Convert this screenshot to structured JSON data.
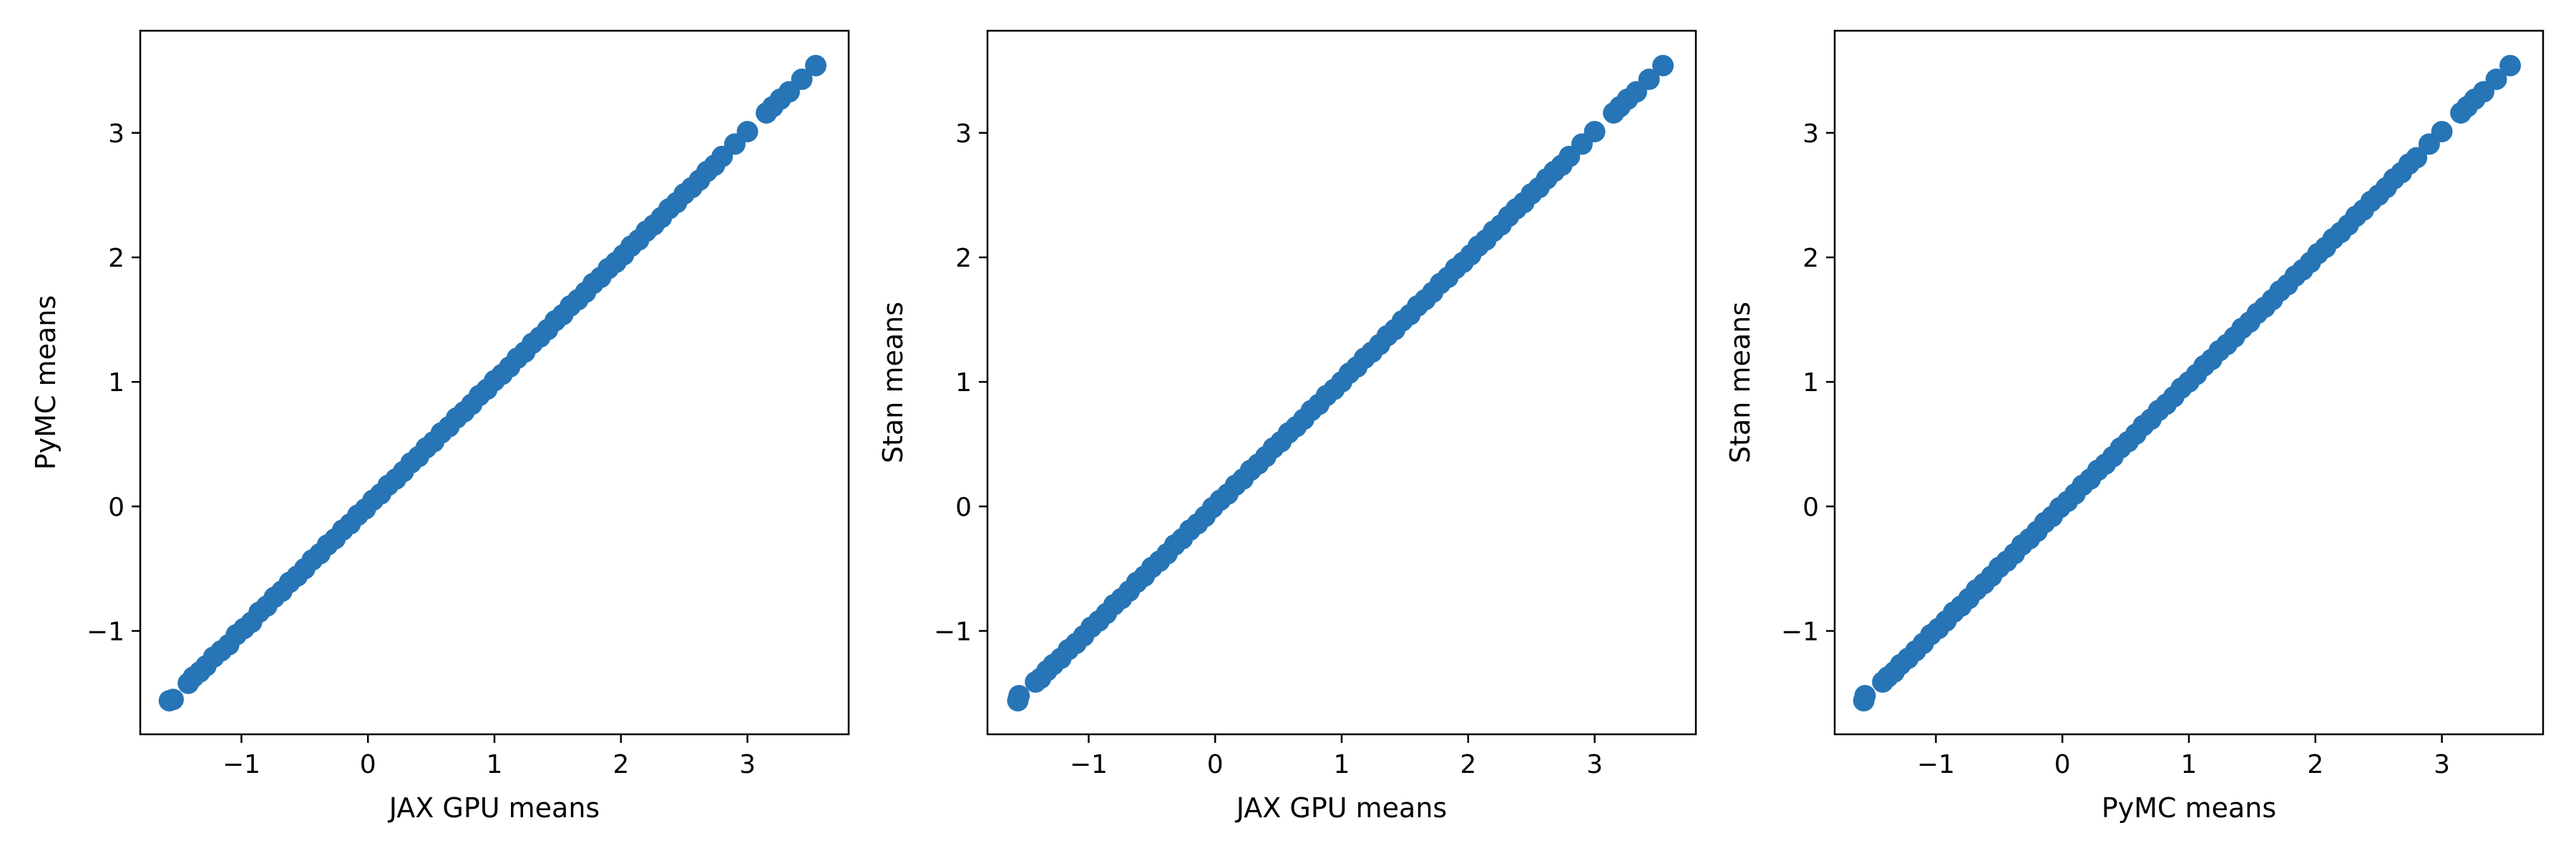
{
  "colors": {
    "marker": "#2775b6",
    "axes": "#000000",
    "background": "#ffffff"
  },
  "chart_data": [
    {
      "type": "scatter",
      "title": "",
      "xlabel": "JAX GPU means",
      "ylabel": "PyMC means",
      "xlim": [
        -1.8,
        3.8
      ],
      "ylim": [
        -1.83,
        3.82
      ],
      "xticks": [
        -1,
        0,
        1,
        2,
        3
      ],
      "yticks": [
        -1,
        0,
        1,
        2,
        3
      ],
      "xtick_labels": [
        "−1",
        "0",
        "1",
        "2",
        "3"
      ],
      "ytick_labels": [
        "−1",
        "0",
        "1",
        "2",
        "3"
      ],
      "grid": false,
      "legend": "none",
      "series": [
        {
          "x": [
            -1.57,
            -1.54,
            -1.42,
            -1.38,
            -1.33,
            -1.28,
            -1.22,
            -1.16,
            -1.1,
            -1.04,
            -0.98,
            -0.92,
            -0.86,
            -0.8,
            -0.74,
            -0.68,
            -0.62,
            -0.56,
            -0.5,
            -0.44,
            -0.38,
            -0.32,
            -0.26,
            -0.2,
            -0.14,
            -0.08,
            -0.02,
            0.04,
            0.1,
            0.16,
            0.22,
            0.28,
            0.34,
            0.4,
            0.46,
            0.52,
            0.58,
            0.64,
            0.7,
            0.76,
            0.82,
            0.88,
            0.94,
            1.0,
            1.06,
            1.12,
            1.18,
            1.24,
            1.3,
            1.36,
            1.42,
            1.48,
            1.54,
            1.6,
            1.66,
            1.72,
            1.78,
            1.84,
            1.9,
            1.96,
            2.02,
            2.08,
            2.14,
            2.2,
            2.26,
            2.32,
            2.38,
            2.44,
            2.5,
            2.56,
            2.62,
            2.68,
            2.74,
            2.8,
            2.9,
            3.0,
            3.15,
            3.2,
            3.26,
            3.33,
            3.43,
            3.54
          ],
          "y": [
            -1.56,
            -1.55,
            -1.42,
            -1.37,
            -1.33,
            -1.28,
            -1.21,
            -1.16,
            -1.11,
            -1.03,
            -0.98,
            -0.93,
            -0.85,
            -0.8,
            -0.73,
            -0.68,
            -0.61,
            -0.56,
            -0.5,
            -0.43,
            -0.38,
            -0.31,
            -0.26,
            -0.19,
            -0.14,
            -0.07,
            -0.02,
            0.05,
            0.1,
            0.17,
            0.22,
            0.28,
            0.35,
            0.4,
            0.47,
            0.52,
            0.59,
            0.64,
            0.71,
            0.76,
            0.82,
            0.89,
            0.94,
            1.01,
            1.06,
            1.12,
            1.19,
            1.24,
            1.31,
            1.36,
            1.42,
            1.49,
            1.54,
            1.61,
            1.66,
            1.72,
            1.79,
            1.84,
            1.91,
            1.96,
            2.02,
            2.09,
            2.14,
            2.21,
            2.26,
            2.32,
            2.39,
            2.44,
            2.51,
            2.56,
            2.62,
            2.69,
            2.74,
            2.81,
            2.91,
            3.01,
            3.16,
            3.21,
            3.27,
            3.33,
            3.43,
            3.54
          ]
        }
      ]
    },
    {
      "type": "scatter",
      "title": "",
      "xlabel": "JAX GPU means",
      "ylabel": "Stan means",
      "xlim": [
        -1.8,
        3.8
      ],
      "ylim": [
        -1.83,
        3.82
      ],
      "xticks": [
        -1,
        0,
        1,
        2,
        3
      ],
      "yticks": [
        -1,
        0,
        1,
        2,
        3
      ],
      "xtick_labels": [
        "−1",
        "0",
        "1",
        "2",
        "3"
      ],
      "ytick_labels": [
        "−1",
        "0",
        "1",
        "2",
        "3"
      ],
      "grid": false,
      "legend": "none",
      "series": [
        {
          "x": [
            -1.56,
            -1.55,
            -1.42,
            -1.38,
            -1.33,
            -1.28,
            -1.22,
            -1.16,
            -1.1,
            -1.04,
            -0.98,
            -0.92,
            -0.86,
            -0.8,
            -0.74,
            -0.68,
            -0.62,
            -0.56,
            -0.5,
            -0.44,
            -0.38,
            -0.32,
            -0.26,
            -0.2,
            -0.14,
            -0.08,
            -0.02,
            0.04,
            0.1,
            0.16,
            0.22,
            0.28,
            0.34,
            0.4,
            0.46,
            0.52,
            0.58,
            0.64,
            0.7,
            0.76,
            0.82,
            0.88,
            0.94,
            1.0,
            1.06,
            1.12,
            1.18,
            1.24,
            1.3,
            1.36,
            1.42,
            1.48,
            1.54,
            1.6,
            1.66,
            1.72,
            1.78,
            1.84,
            1.9,
            1.96,
            2.02,
            2.08,
            2.14,
            2.2,
            2.26,
            2.32,
            2.38,
            2.44,
            2.5,
            2.56,
            2.62,
            2.68,
            2.74,
            2.8,
            2.9,
            3.0,
            3.15,
            3.2,
            3.26,
            3.33,
            3.43,
            3.54
          ],
          "y": [
            -1.56,
            -1.52,
            -1.41,
            -1.38,
            -1.32,
            -1.27,
            -1.22,
            -1.15,
            -1.1,
            -1.04,
            -0.97,
            -0.92,
            -0.86,
            -0.79,
            -0.74,
            -0.68,
            -0.61,
            -0.56,
            -0.49,
            -0.44,
            -0.38,
            -0.31,
            -0.26,
            -0.19,
            -0.14,
            -0.08,
            -0.01,
            0.05,
            0.1,
            0.17,
            0.22,
            0.29,
            0.34,
            0.4,
            0.47,
            0.52,
            0.59,
            0.64,
            0.7,
            0.77,
            0.82,
            0.89,
            0.94,
            1.0,
            1.07,
            1.12,
            1.19,
            1.24,
            1.3,
            1.37,
            1.42,
            1.49,
            1.54,
            1.61,
            1.66,
            1.72,
            1.79,
            1.84,
            1.91,
            1.96,
            2.02,
            2.09,
            2.14,
            2.21,
            2.26,
            2.33,
            2.39,
            2.44,
            2.51,
            2.56,
            2.63,
            2.69,
            2.74,
            2.81,
            2.91,
            3.01,
            3.16,
            3.21,
            3.27,
            3.33,
            3.43,
            3.54
          ]
        }
      ]
    },
    {
      "type": "scatter",
      "title": "",
      "xlabel": "PyMC means",
      "ylabel": "Stan means",
      "xlim": [
        -1.8,
        3.8
      ],
      "ylim": [
        -1.83,
        3.82
      ],
      "xticks": [
        -1,
        0,
        1,
        2,
        3
      ],
      "yticks": [
        -1,
        0,
        1,
        2,
        3
      ],
      "xtick_labels": [
        "−1",
        "0",
        "1",
        "2",
        "3"
      ],
      "ytick_labels": [
        "−1",
        "0",
        "1",
        "2",
        "3"
      ],
      "grid": false,
      "legend": "none",
      "series": [
        {
          "x": [
            -1.57,
            -1.56,
            -1.42,
            -1.38,
            -1.33,
            -1.28,
            -1.22,
            -1.16,
            -1.1,
            -1.04,
            -0.98,
            -0.92,
            -0.86,
            -0.8,
            -0.74,
            -0.68,
            -0.62,
            -0.56,
            -0.5,
            -0.44,
            -0.38,
            -0.32,
            -0.26,
            -0.2,
            -0.14,
            -0.08,
            -0.02,
            0.04,
            0.1,
            0.16,
            0.22,
            0.28,
            0.34,
            0.4,
            0.46,
            0.52,
            0.58,
            0.64,
            0.7,
            0.76,
            0.82,
            0.88,
            0.94,
            1.0,
            1.06,
            1.12,
            1.18,
            1.24,
            1.3,
            1.36,
            1.42,
            1.48,
            1.54,
            1.6,
            1.66,
            1.72,
            1.78,
            1.84,
            1.9,
            1.96,
            2.02,
            2.08,
            2.14,
            2.2,
            2.26,
            2.32,
            2.38,
            2.44,
            2.5,
            2.56,
            2.62,
            2.68,
            2.74,
            2.8,
            2.9,
            3.0,
            3.15,
            3.2,
            3.26,
            3.33,
            3.43,
            3.54
          ],
          "y": [
            -1.56,
            -1.52,
            -1.41,
            -1.37,
            -1.33,
            -1.27,
            -1.22,
            -1.16,
            -1.1,
            -1.03,
            -0.98,
            -0.92,
            -0.85,
            -0.8,
            -0.74,
            -0.67,
            -0.62,
            -0.56,
            -0.49,
            -0.44,
            -0.38,
            -0.31,
            -0.26,
            -0.2,
            -0.13,
            -0.08,
            -0.01,
            0.04,
            0.1,
            0.17,
            0.22,
            0.29,
            0.34,
            0.4,
            0.47,
            0.52,
            0.58,
            0.65,
            0.7,
            0.77,
            0.82,
            0.88,
            0.95,
            1.0,
            1.06,
            1.13,
            1.18,
            1.25,
            1.3,
            1.36,
            1.43,
            1.48,
            1.55,
            1.6,
            1.66,
            1.73,
            1.78,
            1.85,
            1.9,
            1.96,
            2.03,
            2.08,
            2.15,
            2.2,
            2.26,
            2.33,
            2.38,
            2.45,
            2.5,
            2.56,
            2.63,
            2.68,
            2.75,
            2.8,
            2.91,
            3.01,
            3.16,
            3.21,
            3.27,
            3.33,
            3.43,
            3.54
          ]
        }
      ]
    }
  ]
}
